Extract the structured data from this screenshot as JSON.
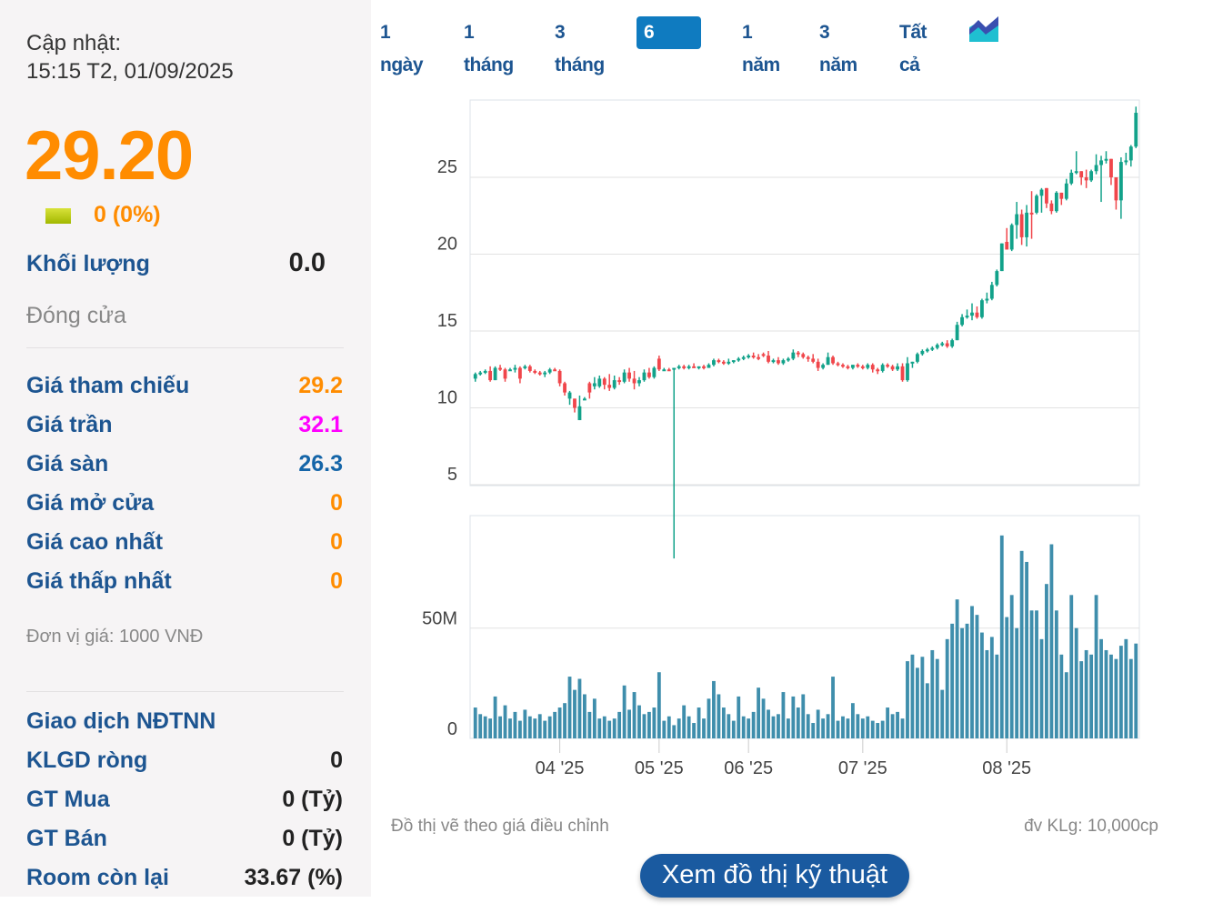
{
  "summary": {
    "updated_label": "Cập nhật:",
    "updated_time": "15:15 T2, 01/09/2025",
    "price": "29.20",
    "change": "0 (0%)",
    "volume_label": "Khối lượng",
    "volume_value": "0.0",
    "status": "Đóng cửa",
    "unit_note": "Đơn vị giá: 1000 VNĐ"
  },
  "price_rows": [
    {
      "label": "Giá tham chiếu",
      "value": "29.2",
      "color": "#ff8c00"
    },
    {
      "label": "Giá trần",
      "value": "32.1",
      "color": "#ff00ff"
    },
    {
      "label": "Giá sàn",
      "value": "26.3",
      "color": "#1565a8"
    },
    {
      "label": "Giá mở cửa",
      "value": "0",
      "color": "#ff8c00"
    },
    {
      "label": "Giá cao nhất",
      "value": "0",
      "color": "#ff8c00"
    },
    {
      "label": "Giá thấp nhất",
      "value": "0",
      "color": "#ff8c00"
    }
  ],
  "foreign": {
    "title": "Giao dịch NĐTNN",
    "rows": [
      {
        "label": "KLGD ròng",
        "value": "0"
      },
      {
        "label": "GT Mua",
        "value": "0 (Tỷ)"
      },
      {
        "label": "GT Bán",
        "value": "0 (Tỷ)"
      },
      {
        "label": "Room còn lại",
        "value": "33.67 (%)"
      }
    ]
  },
  "tabs": [
    {
      "label": "1 ngày",
      "active": false
    },
    {
      "label": "1 tháng",
      "active": false
    },
    {
      "label": "3 tháng",
      "active": false
    },
    {
      "label": "6 tháng",
      "active": true
    },
    {
      "label": "1 năm",
      "active": false
    },
    {
      "label": "3 năm",
      "active": false
    },
    {
      "label": "Tất cả",
      "active": false
    }
  ],
  "chart_type_icon": "area-chart-icon",
  "footer": {
    "left_note": "Đồ thị vẽ theo giá điều chỉnh",
    "right_note": "đv KLg: 10,000cp",
    "button": "Xem đồ thị kỹ thuật"
  },
  "colors": {
    "up": "#12a28a",
    "down": "#f0464b",
    "volume": "#3f8eac",
    "accent": "#ff8c00",
    "label": "#1d5591"
  },
  "chart_data": {
    "type": "candlestick",
    "price_yticks": [
      5,
      10,
      15,
      20,
      25
    ],
    "price_ylim": [
      5,
      30
    ],
    "volume_yticks": [
      {
        "value": 0,
        "label": "0"
      },
      {
        "value": 50,
        "label": "50M"
      }
    ],
    "volume_ylim": [
      0,
      101
    ],
    "volume_unit": "M",
    "grid": true,
    "xticks": [
      {
        "label": "04 '25",
        "index": 17
      },
      {
        "label": "05 '25",
        "index": 37
      },
      {
        "label": "06 '25",
        "index": 55
      },
      {
        "label": "07 '25",
        "index": 78
      },
      {
        "label": "08 '25",
        "index": 107
      }
    ],
    "ohlc": [
      [
        11.9,
        12.3,
        11.7,
        12.2
      ],
      [
        12.2,
        12.4,
        12.1,
        12.3
      ],
      [
        12.3,
        12.5,
        12.2,
        12.4
      ],
      [
        12.4,
        12.7,
        11.7,
        11.8
      ],
      [
        11.8,
        12.7,
        11.8,
        12.6
      ],
      [
        12.6,
        12.8,
        12.4,
        12.5
      ],
      [
        12.5,
        12.6,
        11.7,
        11.9
      ],
      [
        12.5,
        12.6,
        12.4,
        12.5
      ],
      [
        12.5,
        12.8,
        12.3,
        12.6
      ],
      [
        12.6,
        12.7,
        11.6,
        11.9
      ],
      [
        12.6,
        12.8,
        12.5,
        12.7
      ],
      [
        12.7,
        12.8,
        12.3,
        12.4
      ],
      [
        12.4,
        12.5,
        12.2,
        12.3
      ],
      [
        12.3,
        12.4,
        12.1,
        12.2
      ],
      [
        12.2,
        12.4,
        12.0,
        12.3
      ],
      [
        12.3,
        12.6,
        12.2,
        12.5
      ],
      [
        12.5,
        12.6,
        12.4,
        12.4
      ],
      [
        12.4,
        12.5,
        11.4,
        11.6
      ],
      [
        11.6,
        11.7,
        10.8,
        11.0
      ],
      [
        10.6,
        11.1,
        10.2,
        11.0
      ],
      [
        10.6,
        10.6,
        9.7,
        10.0
      ],
      [
        9.2,
        10.8,
        9.2,
        10.1
      ],
      [
        10.6,
        10.7,
        10.5,
        10.6
      ],
      [
        11.6,
        11.7,
        10.6,
        11.0
      ],
      [
        11.4,
        12.0,
        11.2,
        11.6
      ],
      [
        11.4,
        12.1,
        11.3,
        11.9
      ],
      [
        11.9,
        12.0,
        11.2,
        11.5
      ],
      [
        11.5,
        12.2,
        11.1,
        11.3
      ],
      [
        11.3,
        12.1,
        11.2,
        11.8
      ],
      [
        11.8,
        12.0,
        11.5,
        11.7
      ],
      [
        11.7,
        12.5,
        11.6,
        12.3
      ],
      [
        12.3,
        12.6,
        11.7,
        11.9
      ],
      [
        11.9,
        12.4,
        11.2,
        11.6
      ],
      [
        11.6,
        12.0,
        11.4,
        11.8
      ],
      [
        11.8,
        12.5,
        11.7,
        12.3
      ],
      [
        12.3,
        12.6,
        11.9,
        12.0
      ],
      [
        12.0,
        12.7,
        11.9,
        12.6
      ],
      [
        13.2,
        13.4,
        12.4,
        12.5
      ],
      [
        12.5,
        12.6,
        12.4,
        12.5
      ],
      [
        12.5,
        12.6,
        12.4,
        12.4
      ],
      [
        12.5,
        12.6,
        0.2,
        12.6
      ],
      [
        12.6,
        12.8,
        12.5,
        12.7
      ],
      [
        12.7,
        12.8,
        12.5,
        12.6
      ],
      [
        12.6,
        12.8,
        12.5,
        12.7
      ],
      [
        12.7,
        12.9,
        12.6,
        12.6
      ],
      [
        12.6,
        12.7,
        12.5,
        12.7
      ],
      [
        12.7,
        12.8,
        12.5,
        12.6
      ],
      [
        12.6,
        12.9,
        12.6,
        12.8
      ],
      [
        12.8,
        13.2,
        12.7,
        13.1
      ],
      [
        13.1,
        13.2,
        12.9,
        13.0
      ],
      [
        13.0,
        13.1,
        12.8,
        12.9
      ],
      [
        12.9,
        13.2,
        12.8,
        13.0
      ],
      [
        13.0,
        13.1,
        12.9,
        13.1
      ],
      [
        13.1,
        13.3,
        13.0,
        13.2
      ],
      [
        13.2,
        13.4,
        13.1,
        13.3
      ],
      [
        13.3,
        13.5,
        13.2,
        13.4
      ],
      [
        13.4,
        13.6,
        13.2,
        13.3
      ],
      [
        13.3,
        13.5,
        13.1,
        13.2
      ],
      [
        13.5,
        13.6,
        13.3,
        13.4
      ],
      [
        13.4,
        13.7,
        12.9,
        13.0
      ],
      [
        13.0,
        13.2,
        12.9,
        13.1
      ],
      [
        13.1,
        13.3,
        12.8,
        12.9
      ],
      [
        12.9,
        13.2,
        12.8,
        13.1
      ],
      [
        13.1,
        13.3,
        13.0,
        13.2
      ],
      [
        13.2,
        13.8,
        13.1,
        13.6
      ],
      [
        13.6,
        13.7,
        13.3,
        13.5
      ],
      [
        13.5,
        13.6,
        13.2,
        13.3
      ],
      [
        13.3,
        13.4,
        13.0,
        13.2
      ],
      [
        13.2,
        13.5,
        12.9,
        13.0
      ],
      [
        13.0,
        13.2,
        12.4,
        12.6
      ],
      [
        12.6,
        12.9,
        12.5,
        12.8
      ],
      [
        12.8,
        13.6,
        12.8,
        13.3
      ],
      [
        13.3,
        13.4,
        12.8,
        12.9
      ],
      [
        12.9,
        13.0,
        12.7,
        12.8
      ],
      [
        12.8,
        12.9,
        12.6,
        12.7
      ],
      [
        12.7,
        12.8,
        12.5,
        12.6
      ],
      [
        12.6,
        12.8,
        12.5,
        12.8
      ],
      [
        12.8,
        12.9,
        12.6,
        12.7
      ],
      [
        12.7,
        12.8,
        12.5,
        12.6
      ],
      [
        12.6,
        12.9,
        12.5,
        12.8
      ],
      [
        12.8,
        12.9,
        12.3,
        12.5
      ],
      [
        12.5,
        12.6,
        12.2,
        12.4
      ],
      [
        12.4,
        12.9,
        12.3,
        12.8
      ],
      [
        12.8,
        12.9,
        12.6,
        12.7
      ],
      [
        12.7,
        12.8,
        12.4,
        12.5
      ],
      [
        12.5,
        12.9,
        12.4,
        12.7
      ],
      [
        12.7,
        12.9,
        11.7,
        11.8
      ],
      [
        11.8,
        13.3,
        11.7,
        12.9
      ],
      [
        12.9,
        13.0,
        12.6,
        13.0
      ],
      [
        13.0,
        13.6,
        12.9,
        13.5
      ],
      [
        13.5,
        13.8,
        13.4,
        13.7
      ],
      [
        13.7,
        13.9,
        13.6,
        13.8
      ],
      [
        13.8,
        14.0,
        13.7,
        13.9
      ],
      [
        13.9,
        14.2,
        13.8,
        14.1
      ],
      [
        14.1,
        14.3,
        14.0,
        14.2
      ],
      [
        14.2,
        14.4,
        13.9,
        14.0
      ],
      [
        14.0,
        14.5,
        13.9,
        14.4
      ],
      [
        14.4,
        15.6,
        14.4,
        15.4
      ],
      [
        15.4,
        16.1,
        15.3,
        15.9
      ],
      [
        15.9,
        16.4,
        15.8,
        16.0
      ],
      [
        16.0,
        16.8,
        15.7,
        16.2
      ],
      [
        16.2,
        16.6,
        15.8,
        15.9
      ],
      [
        15.9,
        17.1,
        15.8,
        17.0
      ],
      [
        17.0,
        17.5,
        16.8,
        17.1
      ],
      [
        17.1,
        18.2,
        17.0,
        18.0
      ],
      [
        18.0,
        19.0,
        17.9,
        18.9
      ],
      [
        18.9,
        20.7,
        18.9,
        20.7
      ],
      [
        20.8,
        21.7,
        20.3,
        20.3
      ],
      [
        20.3,
        22.0,
        20.2,
        21.9
      ],
      [
        21.9,
        23.4,
        21.0,
        22.6
      ],
      [
        22.6,
        22.9,
        20.6,
        21.1
      ],
      [
        21.1,
        23.2,
        20.5,
        22.7
      ],
      [
        22.7,
        24.1,
        21.0,
        22.6
      ],
      [
        22.7,
        23.9,
        22.6,
        23.8
      ],
      [
        23.8,
        24.3,
        22.7,
        24.2
      ],
      [
        24.3,
        24.3,
        23.0,
        23.3
      ],
      [
        23.3,
        23.5,
        22.6,
        22.8
      ],
      [
        22.8,
        24.1,
        22.7,
        24.0
      ],
      [
        24.0,
        24.0,
        23.2,
        23.6
      ],
      [
        23.6,
        24.9,
        23.5,
        24.6
      ],
      [
        24.6,
        25.5,
        24.5,
        25.3
      ],
      [
        25.3,
        26.7,
        25.2,
        25.4
      ],
      [
        25.4,
        25.4,
        24.5,
        25.0
      ],
      [
        25.0,
        25.5,
        24.3,
        24.8
      ],
      [
        24.8,
        25.5,
        24.7,
        25.4
      ],
      [
        25.4,
        26.5,
        25.2,
        25.8
      ],
      [
        25.8,
        26.4,
        23.4,
        26.1
      ],
      [
        26.1,
        26.7,
        25.9,
        26.2
      ],
      [
        26.2,
        26.2,
        24.5,
        25.0
      ],
      [
        25.0,
        25.0,
        22.9,
        23.5
      ],
      [
        23.5,
        26.3,
        22.3,
        26.0
      ],
      [
        26.0,
        26.6,
        25.8,
        26.1
      ],
      [
        26.1,
        27.1,
        25.7,
        27.0
      ],
      [
        27.0,
        29.6,
        26.9,
        29.2
      ]
    ],
    "volume": [
      14,
      11,
      10,
      9,
      19,
      10,
      15,
      9,
      12,
      8,
      13,
      10,
      9,
      11,
      8,
      10,
      12,
      14,
      16,
      28,
      22,
      27,
      20,
      12,
      18,
      9,
      10,
      8,
      9,
      12,
      24,
      13,
      21,
      15,
      11,
      12,
      14,
      30,
      8,
      10,
      6,
      9,
      15,
      10,
      7,
      14,
      9,
      18,
      26,
      20,
      14,
      11,
      8,
      19,
      10,
      9,
      12,
      23,
      18,
      13,
      10,
      11,
      21,
      9,
      19,
      14,
      20,
      11,
      7,
      13,
      9,
      11,
      28,
      8,
      10,
      9,
      16,
      11,
      9,
      10,
      8,
      7,
      8,
      14,
      11,
      12,
      9,
      35,
      38,
      32,
      37,
      25,
      40,
      36,
      22,
      45,
      52,
      63,
      50,
      52,
      60,
      56,
      48,
      40,
      46,
      38,
      92,
      55,
      65,
      50,
      85,
      80,
      58,
      58,
      45,
      70,
      88,
      58,
      38,
      30,
      65,
      50,
      35,
      40,
      38,
      65,
      45,
      40,
      38,
      36,
      42,
      45,
      36,
      43
    ]
  }
}
